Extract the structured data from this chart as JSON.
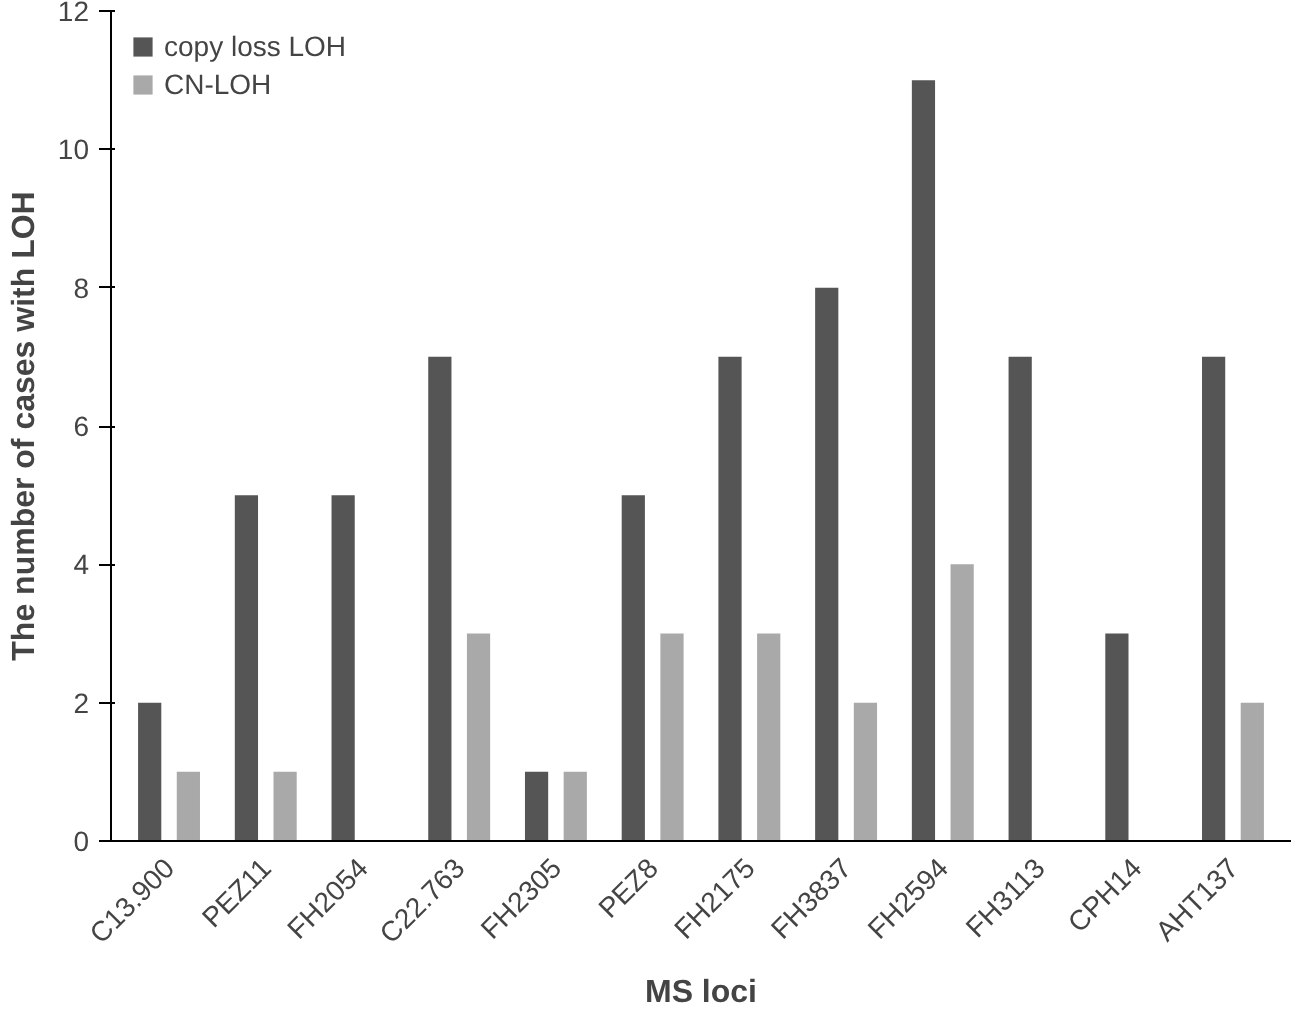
{
  "chart_data": {
    "type": "bar",
    "xlabel": "MS loci",
    "ylabel": "The number of cases with LOH",
    "categories": [
      "C13.900",
      "PEZ11",
      "FH2054",
      "C22.763",
      "FH2305",
      "PEZ8",
      "FH2175",
      "FH3837",
      "FH2594",
      "FH3113",
      "CPH14",
      "AHT137"
    ],
    "series": [
      {
        "name": "copy loss LOH",
        "color": "#555555",
        "values": [
          2,
          5,
          5,
          7,
          1,
          5,
          7,
          8,
          11,
          7,
          3,
          7
        ]
      },
      {
        "name": "CN-LOH",
        "color": "#a9a9a9",
        "values": [
          1,
          1,
          0,
          3,
          1,
          3,
          3,
          2,
          4,
          0,
          0,
          2
        ]
      }
    ],
    "ylim": [
      0,
      12
    ],
    "yticks": [
      0,
      2,
      4,
      6,
      8,
      10,
      12
    ],
    "grid": false,
    "legend": "top left"
  }
}
